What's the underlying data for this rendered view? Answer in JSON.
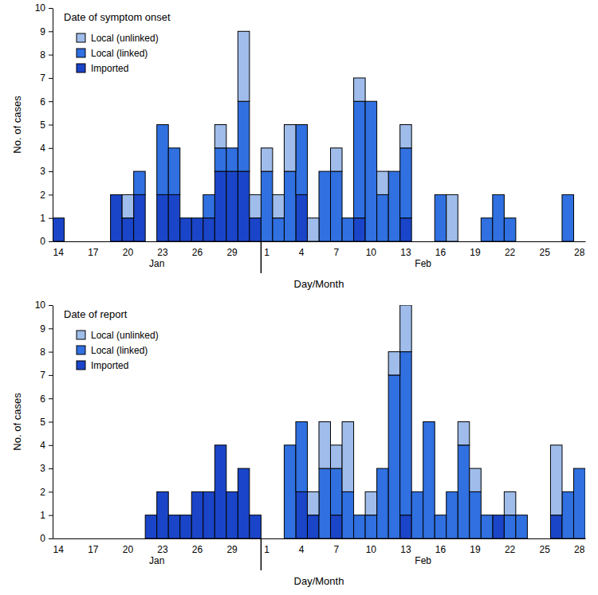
{
  "chart_data": [
    {
      "type": "bar",
      "title": "Date of symptom onset",
      "xlabel": "Day/Month",
      "ylabel": "No. of cases",
      "stacked": true,
      "legend": "upper left",
      "categories": [
        "14",
        null,
        null,
        "17",
        null,
        null,
        "20",
        null,
        null,
        "23",
        null,
        null,
        "26",
        null,
        null,
        "29",
        null,
        null,
        "1",
        null,
        null,
        "4",
        null,
        null,
        "7",
        null,
        null,
        "10",
        null,
        null,
        "13",
        null,
        null,
        "16",
        null,
        null,
        "19",
        null,
        null,
        "22",
        null,
        null,
        "25",
        null,
        null,
        "28"
      ],
      "x_groups": [
        {
          "label": "Jan",
          "size": 18
        },
        {
          "label": "Feb",
          "size": 28
        }
      ],
      "ylim": [
        0,
        10
      ],
      "yticks": [
        0,
        1,
        2,
        3,
        4,
        5,
        6,
        7,
        8,
        9,
        10
      ],
      "series": [
        {
          "name": "Imported",
          "color": "#1a45c8",
          "values": [
            1,
            0,
            0,
            0,
            0,
            2,
            1,
            2,
            0,
            2,
            2,
            1,
            1,
            1,
            3,
            3,
            3,
            1,
            0,
            0,
            0,
            2,
            0,
            0,
            0,
            0,
            1,
            0,
            0,
            0,
            1,
            0,
            0,
            0,
            0,
            0,
            0,
            0,
            0,
            0,
            0,
            0,
            0,
            0,
            0,
            0
          ]
        },
        {
          "name": "Local (linked)",
          "color": "#3070e0",
          "values": [
            0,
            0,
            0,
            0,
            0,
            0,
            0,
            1,
            0,
            3,
            2,
            0,
            0,
            1,
            1,
            1,
            3,
            0,
            3,
            1,
            3,
            3,
            0,
            3,
            3,
            1,
            5,
            6,
            2,
            3,
            3,
            0,
            0,
            2,
            0,
            0,
            0,
            1,
            2,
            1,
            0,
            0,
            0,
            0,
            2,
            0
          ]
        },
        {
          "name": "Local (unlinked)",
          "color": "#9fbcea",
          "values": [
            0,
            0,
            0,
            0,
            0,
            0,
            1,
            0,
            0,
            0,
            0,
            0,
            0,
            0,
            1,
            0,
            3,
            1,
            1,
            1,
            2,
            0,
            1,
            0,
            1,
            0,
            1,
            0,
            1,
            0,
            1,
            0,
            0,
            0,
            2,
            0,
            0,
            0,
            0,
            0,
            0,
            0,
            0,
            0,
            0,
            0
          ]
        }
      ]
    },
    {
      "type": "bar",
      "title": "Date of report",
      "xlabel": "Day/Month",
      "ylabel": "No. of cases",
      "stacked": true,
      "legend": "upper left",
      "categories": [
        "14",
        null,
        null,
        "17",
        null,
        null,
        "20",
        null,
        null,
        "23",
        null,
        null,
        "26",
        null,
        null,
        "29",
        null,
        null,
        "1",
        null,
        null,
        "4",
        null,
        null,
        "7",
        null,
        null,
        "10",
        null,
        null,
        "13",
        null,
        null,
        "16",
        null,
        null,
        "19",
        null,
        null,
        "22",
        null,
        null,
        "25",
        null,
        null,
        "28"
      ],
      "x_groups": [
        {
          "label": "Jan",
          "size": 18
        },
        {
          "label": "Feb",
          "size": 28
        }
      ],
      "ylim": [
        0,
        10
      ],
      "yticks": [
        0,
        1,
        2,
        3,
        4,
        5,
        6,
        7,
        8,
        9,
        10
      ],
      "series": [
        {
          "name": "Imported",
          "color": "#1a45c8",
          "values": [
            0,
            0,
            0,
            0,
            0,
            0,
            0,
            0,
            1,
            2,
            1,
            1,
            2,
            2,
            4,
            2,
            3,
            1,
            0,
            0,
            0,
            2,
            1,
            0,
            1,
            0,
            0,
            0,
            0,
            0,
            1,
            0,
            0,
            0,
            0,
            0,
            0,
            0,
            1,
            0,
            0,
            0,
            0,
            1,
            0,
            0
          ]
        },
        {
          "name": "Local (linked)",
          "color": "#3070e0",
          "values": [
            0,
            0,
            0,
            0,
            0,
            0,
            0,
            0,
            0,
            0,
            0,
            0,
            0,
            0,
            0,
            0,
            0,
            0,
            0,
            0,
            4,
            3,
            0,
            3,
            2,
            2,
            1,
            1,
            3,
            7,
            7,
            2,
            5,
            1,
            2,
            4,
            2,
            1,
            0,
            1,
            1,
            0,
            0,
            0,
            2,
            3
          ]
        },
        {
          "name": "Local (unlinked)",
          "color": "#9fbcea",
          "values": [
            0,
            0,
            0,
            0,
            0,
            0,
            0,
            0,
            0,
            0,
            0,
            0,
            0,
            0,
            0,
            0,
            0,
            0,
            0,
            0,
            0,
            0,
            1,
            2,
            1,
            3,
            0,
            1,
            0,
            1,
            2,
            0,
            0,
            0,
            0,
            1,
            1,
            0,
            0,
            1,
            0,
            0,
            0,
            3,
            0,
            0
          ]
        }
      ]
    }
  ]
}
